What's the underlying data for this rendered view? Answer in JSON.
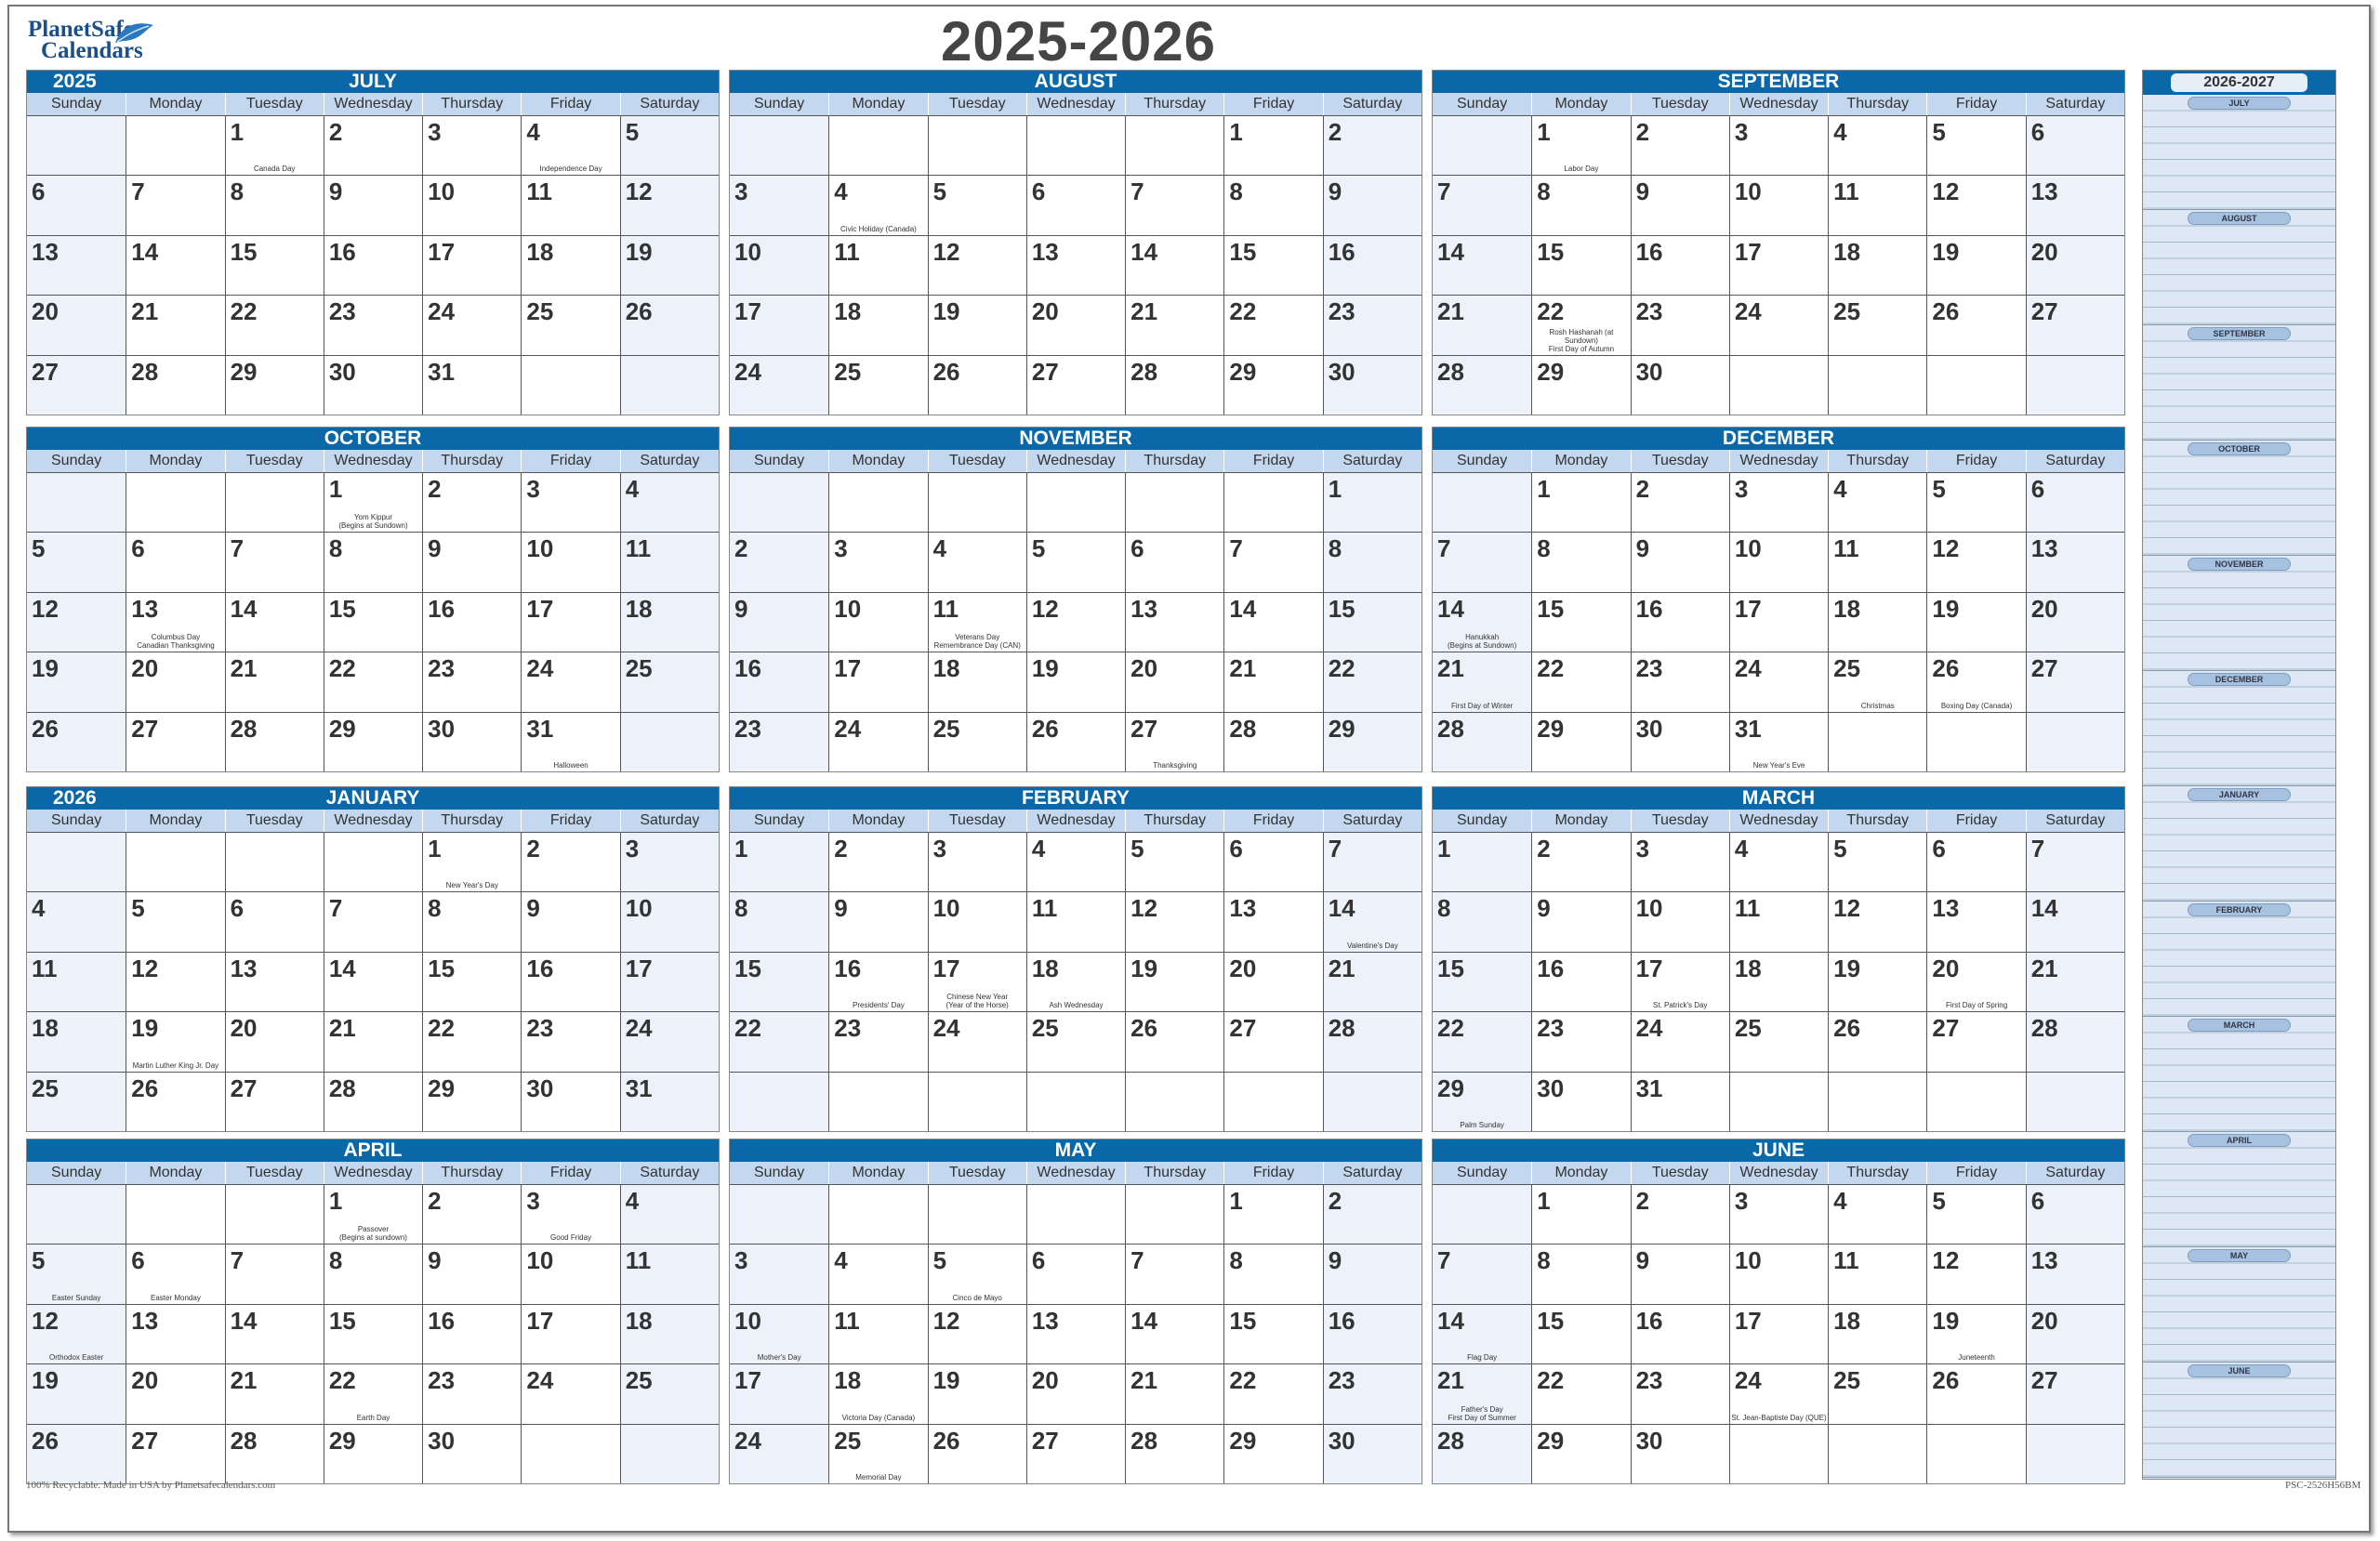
{
  "logo": {
    "line1": "PlanetSafe",
    "line2": "Calendars"
  },
  "title": "2025-2026",
  "weekdays": [
    "Sunday",
    "Monday",
    "Tuesday",
    "Wednesday",
    "Thursday",
    "Friday",
    "Saturday"
  ],
  "colors": {
    "header_blue": "#0a68a8",
    "dayname_bg": "#c3d7ee",
    "weekend_bg": "#edf2fa",
    "panel_bg": "#dde8f4"
  },
  "months": [
    {
      "name": "JULY",
      "year": "2025",
      "start": 2,
      "days": 31,
      "holidays": {
        "1": "Canada Day",
        "4": "Independence Day"
      }
    },
    {
      "name": "AUGUST",
      "start": 5,
      "days": 31,
      "holidays": {
        "4": "Civic Holiday (Canada)"
      }
    },
    {
      "name": "SEPTEMBER",
      "start": 1,
      "days": 30,
      "holidays": {
        "1": "Labor Day",
        "22": "Rosh Hashanah (at Sundown)\nFirst Day of Autumn"
      }
    },
    {
      "name": "OCTOBER",
      "start": 3,
      "days": 31,
      "holidays": {
        "1": "Yom Kippur\n(Begins at Sundown)",
        "13": "Columbus Day\nCanadian Thanksgiving",
        "31": "Halloween"
      }
    },
    {
      "name": "NOVEMBER",
      "start": 6,
      "days": 30,
      "holidays": {
        "11": "Veterans Day\nRemembrance Day (CAN)",
        "27": "Thanksgiving"
      }
    },
    {
      "name": "DECEMBER",
      "start": 1,
      "days": 31,
      "holidays": {
        "14": "Hanukkah\n(Begins at Sundown)",
        "21": "First Day of Winter",
        "25": "Christmas",
        "26": "Boxing Day (Canada)",
        "31": "New Year's Eve"
      }
    },
    {
      "name": "JANUARY",
      "year": "2026",
      "start": 4,
      "days": 31,
      "holidays": {
        "1": "New Year's Day",
        "19": "Martin Luther King Jr. Day"
      }
    },
    {
      "name": "FEBRUARY",
      "start": 0,
      "days": 28,
      "holidays": {
        "14": "Valentine's Day",
        "16": "Presidents' Day",
        "17": "Chinese New Year\n(Year of the Horse)",
        "18": "Ash Wednesday"
      }
    },
    {
      "name": "MARCH",
      "start": 0,
      "days": 31,
      "holidays": {
        "17": "St. Patrick's Day",
        "20": "First Day of Spring",
        "29": "Palm Sunday"
      }
    },
    {
      "name": "APRIL",
      "start": 3,
      "days": 30,
      "holidays": {
        "1": "Passover\n(Begins at sundown)",
        "3": "Good Friday",
        "5": "Easter Sunday",
        "6": "Easter Monday",
        "12": "Orthodox Easter",
        "22": "Earth Day"
      }
    },
    {
      "name": "MAY",
      "start": 5,
      "days": 31,
      "holidays": {
        "5": "Cinco de Mayo",
        "10": "Mother's Day",
        "18": "Victoria Day (Canada)",
        "25": "Memorial Day"
      }
    },
    {
      "name": "JUNE",
      "start": 1,
      "days": 30,
      "holidays": {
        "14": "Flag Day",
        "19": "Juneteenth",
        "21": "Father's Day\nFirst Day of Summer",
        "24": "St. Jean-Baptiste Day (QUE)"
      }
    }
  ],
  "panel": {
    "title": "2026-2027",
    "months": [
      "JULY",
      "AUGUST",
      "SEPTEMBER",
      "OCTOBER",
      "NOVEMBER",
      "DECEMBER",
      "JANUARY",
      "FEBRUARY",
      "MARCH",
      "APRIL",
      "MAY",
      "JUNE"
    ]
  },
  "footer": {
    "left": "100% Recyclable. Made in USA by Planetsafecalendars.com",
    "right": "PSC-2526H56BM"
  }
}
